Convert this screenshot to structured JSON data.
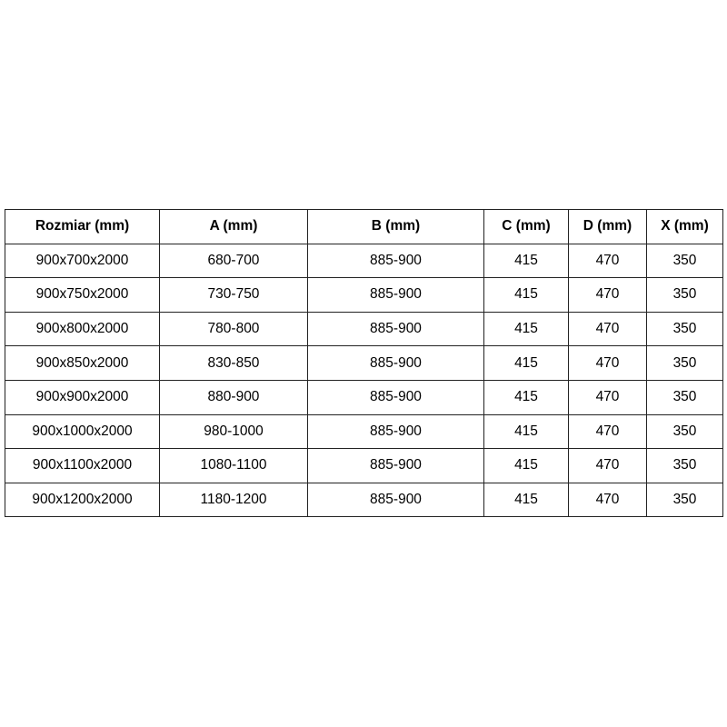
{
  "table": {
    "headers": [
      "Rozmiar (mm)",
      "A (mm)",
      "B (mm)",
      "C (mm)",
      "D (mm)",
      "X (mm)"
    ],
    "rows": [
      [
        "900x700x2000",
        "680-700",
        "885-900",
        "415",
        "470",
        "350"
      ],
      [
        "900x750x2000",
        "730-750",
        "885-900",
        "415",
        "470",
        "350"
      ],
      [
        "900x800x2000",
        "780-800",
        "885-900",
        "415",
        "470",
        "350"
      ],
      [
        "900x850x2000",
        "830-850",
        "885-900",
        "415",
        "470",
        "350"
      ],
      [
        "900x900x2000",
        "880-900",
        "885-900",
        "415",
        "470",
        "350"
      ],
      [
        "900x1000x2000",
        "980-1000",
        "885-900",
        "415",
        "470",
        "350"
      ],
      [
        "900x1100x2000",
        "1080-1100",
        "885-900",
        "415",
        "470",
        "350"
      ],
      [
        "900x1200x2000",
        "1180-1200",
        "885-900",
        "415",
        "470",
        "350"
      ]
    ]
  }
}
